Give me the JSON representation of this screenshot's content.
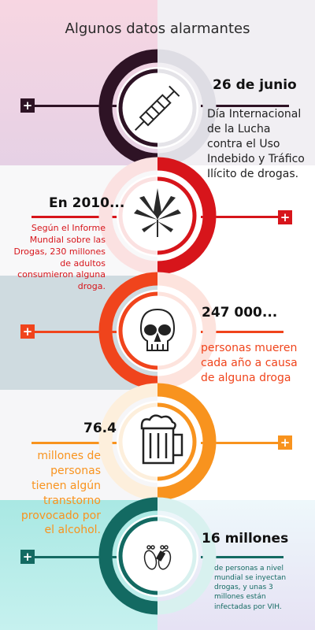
{
  "title": "Algunos datos alarmantes",
  "colors": {
    "s1": "#2e1325",
    "s2": "#d7151b",
    "s3": "#f0441c",
    "s4": "#f8931e",
    "s5": "#136a62"
  },
  "sections": [
    {
      "icon": "syringe-icon",
      "heading": "26 de junio",
      "description": "Día Internacional de la Lucha contra el Uso Indebido y Tráfico Ilícito de drogas."
    },
    {
      "icon": "cannabis-leaf-icon",
      "heading": "En 2010...",
      "description": "Según el Informe Mundial sobre las Drogas, 230 millones de adultos consumieron alguna droga."
    },
    {
      "icon": "skull-icon",
      "heading": "247 000...",
      "description": "personas mueren cada año a causa de alguna droga"
    },
    {
      "icon": "beer-mug-icon",
      "heading": "76.4",
      "description": "millones de personas tienen algún transtorno provocado por el alcohol."
    },
    {
      "icon": "footprints-icon",
      "heading": "16 millones",
      "description": "de personas a nivel mundial se inyectan drogas, y unas 3 millones están infectadas por VIH."
    }
  ]
}
